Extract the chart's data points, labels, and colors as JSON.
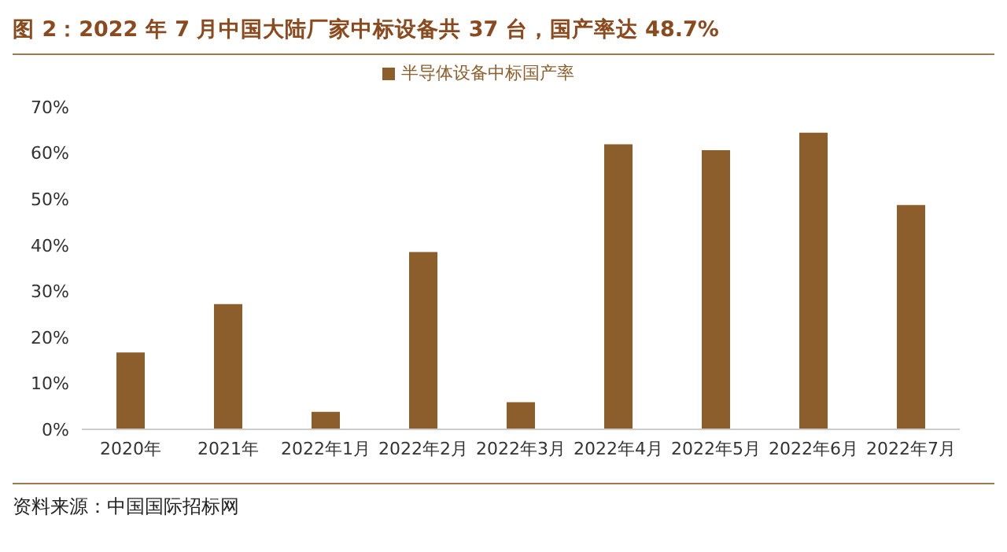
{
  "chart_data": {
    "type": "bar",
    "title": "图 2：2022 年 7 月中国大陆厂家中标设备共 37 台，国产率达 48.7%",
    "categories": [
      "2020年",
      "2021年",
      "2022年1月",
      "2022年2月",
      "2022年3月",
      "2022年4月",
      "2022年5月",
      "2022年6月",
      "2022年7月"
    ],
    "series": [
      {
        "name": "半导体设备中标国产率",
        "color": "#8b5e2b",
        "values": [
          16.7,
          27.2,
          3.8,
          38.5,
          5.9,
          61.9,
          60.6,
          64.4,
          48.7
        ]
      }
    ],
    "ylim": [
      0,
      70
    ],
    "yticks": [
      {
        "value": 0,
        "label": "0%"
      },
      {
        "value": 10,
        "label": "10%"
      },
      {
        "value": 20,
        "label": "20%"
      },
      {
        "value": 30,
        "label": "30%"
      },
      {
        "value": 40,
        "label": "40%"
      },
      {
        "value": 50,
        "label": "50%"
      },
      {
        "value": 60,
        "label": "60%"
      },
      {
        "value": 70,
        "label": "70%"
      }
    ],
    "grid": false,
    "legend": "top",
    "annotations": [
      "资料来源：中国国际招标网"
    ]
  }
}
